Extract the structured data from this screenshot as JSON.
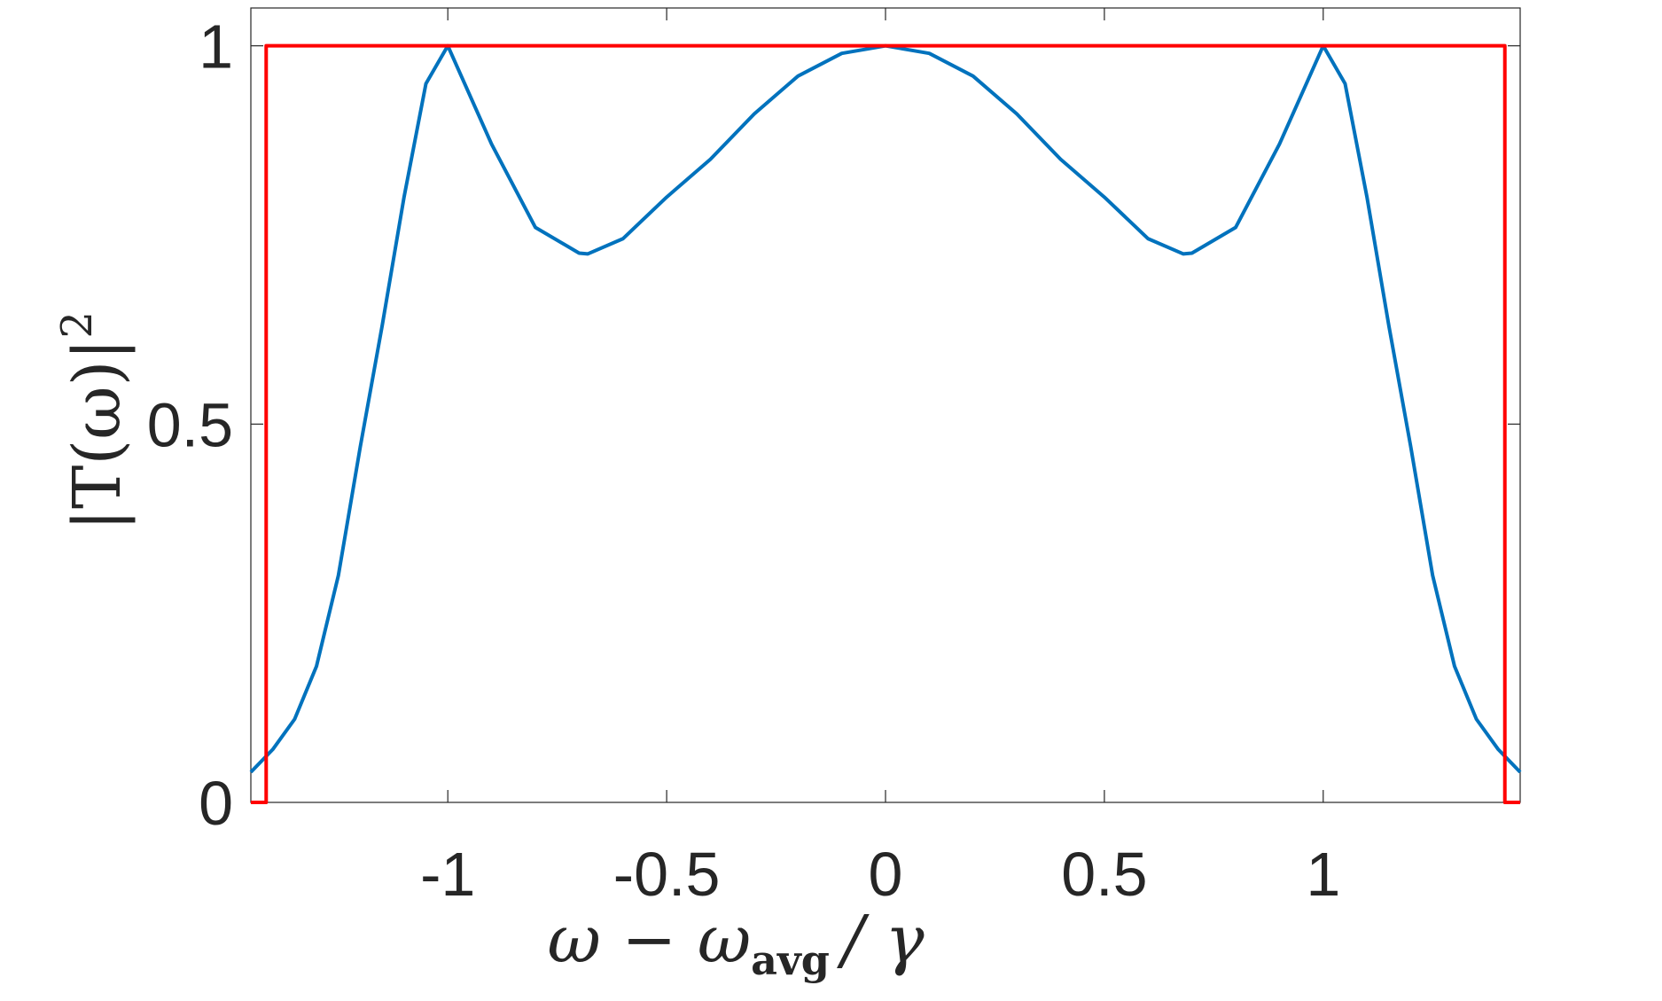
{
  "chart_data": {
    "type": "line",
    "x_label": [
      "ω − ω",
      "avg",
      "/ γ"
    ],
    "y_label": [
      "|T(ω)|",
      "2"
    ],
    "xlim": [
      -1.45,
      1.45
    ],
    "ylim": [
      0,
      1.05
    ],
    "xticks": [
      -1,
      -0.5,
      0,
      0.5,
      1
    ],
    "yticks": [
      0,
      0.5,
      1
    ],
    "grid": false,
    "series": [
      {
        "color": "#0072bd",
        "x": [
          -1.45,
          -1.4,
          -1.35,
          -1.3,
          -1.25,
          -1.2,
          -1.15,
          -1.1,
          -1.05,
          -1.0,
          -0.9,
          -0.8,
          -0.7,
          -0.68,
          -0.6,
          -0.5,
          -0.4,
          -0.3,
          -0.2,
          -0.1,
          0,
          0.1,
          0.2,
          0.3,
          0.4,
          0.5,
          0.6,
          0.68,
          0.7,
          0.8,
          0.9,
          1.0,
          1.05,
          1.1,
          1.15,
          1.2,
          1.25,
          1.3,
          1.35,
          1.4,
          1.45
        ],
        "values": [
          0.04,
          0.07,
          0.11,
          0.18,
          0.3,
          0.47,
          0.63,
          0.8,
          0.95,
          1.0,
          0.87,
          0.76,
          0.726,
          0.725,
          0.745,
          0.8,
          0.85,
          0.91,
          0.96,
          0.99,
          1.0,
          0.99,
          0.96,
          0.91,
          0.85,
          0.8,
          0.745,
          0.725,
          0.726,
          0.76,
          0.87,
          1.0,
          0.95,
          0.8,
          0.63,
          0.47,
          0.3,
          0.18,
          0.11,
          0.07,
          0.04
        ]
      },
      {
        "color": "#ff0000",
        "x": [
          -1.45,
          -1.415,
          -1.415,
          1.415,
          1.415,
          1.45
        ],
        "values": [
          0,
          0,
          1,
          1,
          0,
          0
        ]
      }
    ]
  }
}
